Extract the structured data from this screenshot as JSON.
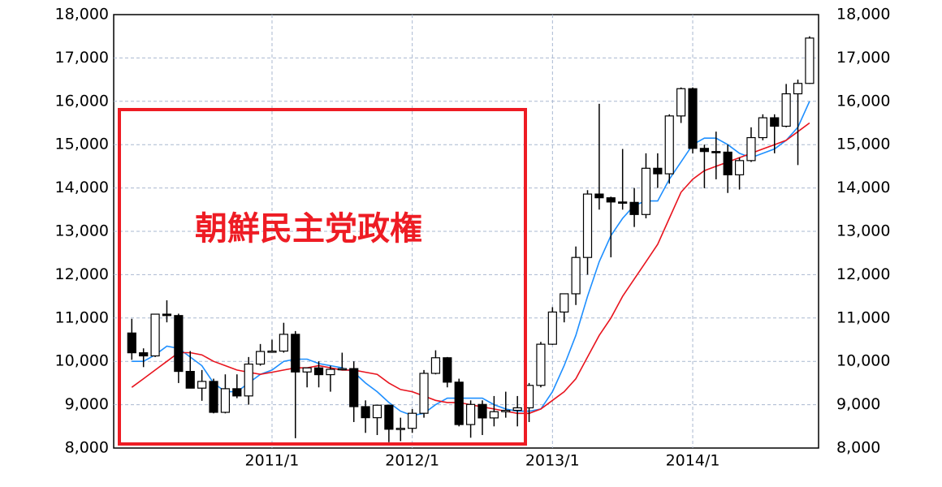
{
  "chart_data": {
    "type": "candlestick",
    "annotation": "朝鮮民主党政権",
    "categories": [
      null,
      null,
      null,
      null,
      null,
      null,
      null,
      null,
      null,
      null,
      null,
      null,
      "2011/1",
      null,
      null,
      null,
      null,
      null,
      null,
      null,
      null,
      null,
      null,
      null,
      "2012/1",
      null,
      null,
      null,
      null,
      null,
      null,
      null,
      null,
      null,
      null,
      null,
      "2013/1",
      null,
      null,
      null,
      null,
      null,
      null,
      null,
      null,
      null,
      null,
      null,
      "2014/1",
      null,
      null,
      null,
      null,
      null,
      null,
      null,
      null,
      null,
      null
    ],
    "open": [
      10654,
      10198,
      10126,
      11089,
      11057,
      9768,
      9382,
      9537,
      8824,
      9369,
      9202,
      9937,
      10228,
      10237,
      10624,
      9755,
      9849,
      9693,
      9816,
      9833,
      8955,
      8700,
      8988,
      8434,
      8455,
      8802,
      9723,
      10083,
      9520,
      8542,
      9006,
      8695,
      8839,
      8870,
      8928,
      9446,
      10395,
      11138,
      11559,
      12397,
      13860,
      13774,
      13677,
      13668,
      13388,
      14455,
      14327,
      15662,
      16291,
      14914,
      14841,
      14827,
      14304,
      14632,
      15162,
      15620,
      15425,
      16173,
      16413
    ],
    "high": [
      10982,
      10300,
      11097,
      11408,
      11100,
      10238,
      9800,
      9600,
      9700,
      9700,
      10100,
      10400,
      10500,
      10890,
      10700,
      9850,
      10000,
      9900,
      10200,
      10000,
      9100,
      9000,
      9000,
      8700,
      8900,
      9800,
      10255,
      10100,
      9600,
      9100,
      9100,
      9200,
      9300,
      9200,
      9500,
      10450,
      11250,
      11500,
      12650,
      13950,
      15942,
      13800,
      14900,
      14000,
      14800,
      14800,
      15700,
      16320,
      16320,
      15000,
      15300,
      15000,
      14700,
      15400,
      15700,
      15700,
      16400,
      16500,
      17500
    ],
    "low": [
      10036,
      9867,
      10100,
      10900,
      9500,
      9380,
      9090,
      8800,
      8800,
      9150,
      9000,
      9900,
      10200,
      10200,
      8227,
      9400,
      9400,
      9300,
      9800,
      8600,
      8350,
      8300,
      8135,
      8160,
      8350,
      8700,
      9700,
      9400,
      8500,
      8238,
      8300,
      8500,
      8700,
      8500,
      8600,
      9400,
      10380,
      10900,
      11300,
      12000,
      13500,
      12400,
      13500,
      13100,
      13300,
      14000,
      14100,
      15500,
      14800,
      13995,
      14200,
      13885,
      13964,
      14600,
      15100,
      14800,
      15400,
      14529,
      16400
    ],
    "close": [
      10198,
      10126,
      11089,
      11057,
      9768,
      9382,
      9537,
      8824,
      9369,
      9202,
      9937,
      10228,
      10237,
      10624,
      9755,
      9849,
      9693,
      9816,
      9833,
      8955,
      8700,
      8988,
      8434,
      8455,
      8802,
      9723,
      10083,
      9520,
      8542,
      9006,
      8695,
      8839,
      8870,
      8928,
      9446,
      10395,
      11138,
      11559,
      12397,
      13860,
      13774,
      13677,
      13668,
      13388,
      14455,
      14327,
      15662,
      16291,
      14914,
      14841,
      14827,
      14304,
      14632,
      15162,
      15620,
      15425,
      16173,
      16413,
      17459
    ],
    "up_color": "#ffffff",
    "down_color": "#000000",
    "series": [
      {
        "color": "#1e8fff",
        "values": [
          10000,
          10000,
          10150,
          10350,
          10300,
          10100,
          9900,
          9500,
          9300,
          9300,
          9500,
          9700,
          9800,
          10000,
          10050,
          10050,
          9950,
          9900,
          9850,
          9750,
          9500,
          9300,
          9050,
          8850,
          8750,
          8800,
          9000,
          9150,
          9150,
          9150,
          9150,
          9000,
          8900,
          8850,
          8850,
          8900,
          9300,
          9900,
          10600,
          11500,
          12300,
          12900,
          13300,
          13600,
          13700,
          13700,
          14200,
          14600,
          15000,
          15150,
          15150,
          15000,
          14800,
          14700,
          14800,
          14900,
          15100,
          15400,
          16000
        ]
      },
      {
        "color": "#e8141e",
        "values": [
          9400,
          9600,
          9800,
          10000,
          10200,
          10200,
          10150,
          10000,
          9900,
          9800,
          9750,
          9700,
          9750,
          9800,
          9850,
          9850,
          9900,
          9850,
          9800,
          9800,
          9750,
          9700,
          9500,
          9350,
          9300,
          9200,
          9100,
          9050,
          9050,
          9000,
          8950,
          8900,
          8850,
          8800,
          8800,
          8900,
          9100,
          9300,
          9600,
          10100,
          10600,
          11000,
          11500,
          11900,
          12300,
          12700,
          13300,
          13900,
          14200,
          14400,
          14500,
          14600,
          14700,
          14800,
          14900,
          15000,
          15100,
          15300,
          15500
        ]
      }
    ],
    "ylim": [
      8000,
      18000
    ],
    "yticks": [
      {
        "value": 8000,
        "label": "8,000"
      },
      {
        "value": 9000,
        "label": "9,000"
      },
      {
        "value": 10000,
        "label": "10,000"
      },
      {
        "value": 11000,
        "label": "11,000"
      },
      {
        "value": 12000,
        "label": "12,000"
      },
      {
        "value": 13000,
        "label": "13,000"
      },
      {
        "value": 14000,
        "label": "14,000"
      },
      {
        "value": 15000,
        "label": "15,000"
      },
      {
        "value": 16000,
        "label": "16,000"
      },
      {
        "value": 17000,
        "label": "17,000"
      },
      {
        "value": 18000,
        "label": "18,000"
      }
    ],
    "y2lim": [
      8000,
      18000
    ],
    "y2ticks": [
      {
        "value": 8000,
        "label": "8,000"
      },
      {
        "value": 9000,
        "label": "9,000"
      },
      {
        "value": 10000,
        "label": "10,000"
      },
      {
        "value": 11000,
        "label": "11,000"
      },
      {
        "value": 12000,
        "label": "12,000"
      },
      {
        "value": 13000,
        "label": "13,000"
      },
      {
        "value": 14000,
        "label": "14,000"
      },
      {
        "value": 15000,
        "label": "15,000"
      },
      {
        "value": 16000,
        "label": "16,000"
      },
      {
        "value": 17000,
        "label": "17,000"
      },
      {
        "value": 18000,
        "label": "18,000"
      }
    ],
    "grid": true
  }
}
